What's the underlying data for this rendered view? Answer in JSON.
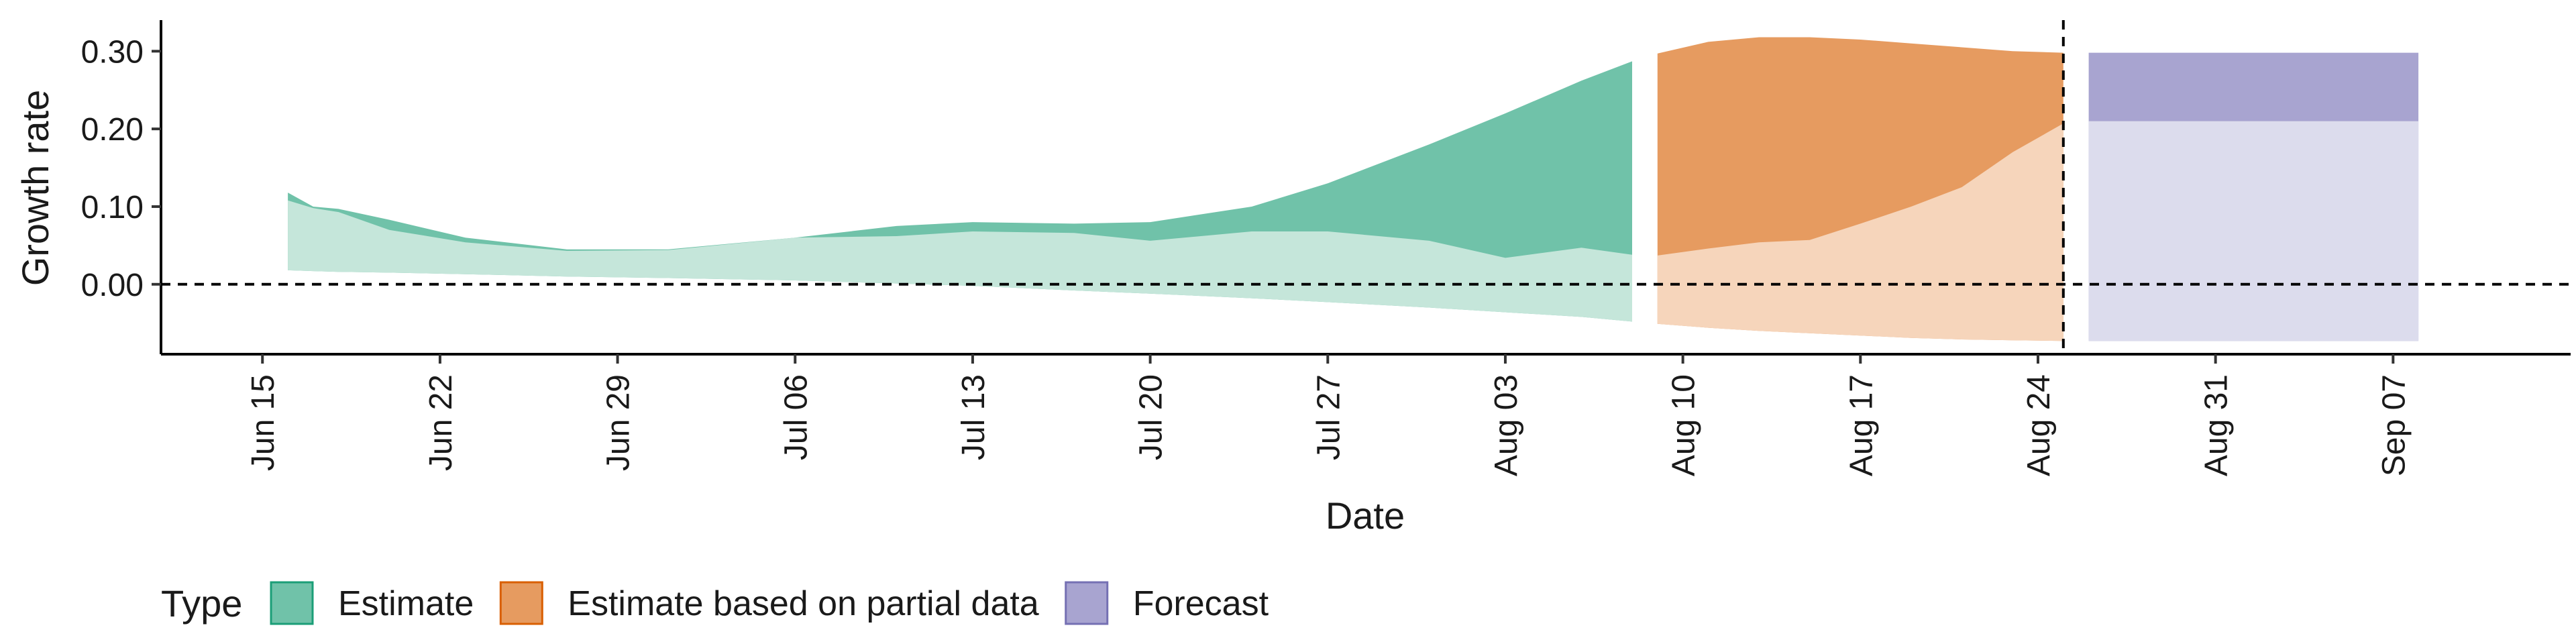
{
  "chart_data": {
    "type": "area",
    "title": "",
    "xlabel": "Date",
    "ylabel": "Growth rate",
    "x_range": [
      "2020-06-11",
      "2020-09-14"
    ],
    "ylim": [
      -0.09,
      0.34
    ],
    "grid": false,
    "x_ticks": [
      "Jun 15",
      "Jun 22",
      "Jun 29",
      "Jul 06",
      "Jul 13",
      "Jul 20",
      "Jul 27",
      "Aug 03",
      "Aug 10",
      "Aug 17",
      "Aug 24",
      "Aug 31",
      "Sep 07"
    ],
    "x_tick_dates": [
      "2020-06-15",
      "2020-06-22",
      "2020-06-29",
      "2020-07-06",
      "2020-07-13",
      "2020-07-20",
      "2020-07-27",
      "2020-08-03",
      "2020-08-10",
      "2020-08-17",
      "2020-08-24",
      "2020-08-31",
      "2020-09-07"
    ],
    "y_ticks": [
      0.0,
      0.1,
      0.2,
      0.3
    ],
    "y_tick_labels": [
      "0.00",
      "0.10",
      "0.20",
      "0.30"
    ],
    "reference_lines": {
      "horizontal_y": 0.0,
      "vertical_x": "2020-08-25",
      "style": "dashed"
    },
    "legend": {
      "title": "Type",
      "position": "bottom-left",
      "entries": [
        "Estimate",
        "Estimate based on partial data",
        "Forecast"
      ]
    },
    "series": [
      {
        "name": "Estimate",
        "color_outer": "#70c2a9",
        "color_inner": "#c5e6da",
        "stroke": "#1b9e77",
        "x": [
          "2020-06-16",
          "2020-06-17",
          "2020-06-18",
          "2020-06-20",
          "2020-06-23",
          "2020-06-27",
          "2020-07-01",
          "2020-07-06",
          "2020-07-10",
          "2020-07-13",
          "2020-07-17",
          "2020-07-20",
          "2020-07-24",
          "2020-07-27",
          "2020-07-31",
          "2020-08-03",
          "2020-08-06",
          "2020-08-08"
        ],
        "upper_90": [
          0.118,
          0.1,
          0.097,
          0.083,
          0.06,
          0.045,
          0.045,
          0.06,
          0.075,
          0.08,
          0.078,
          0.08,
          0.1,
          0.13,
          0.18,
          0.22,
          0.262,
          0.287
        ],
        "upper_50": [
          0.108,
          0.098,
          0.093,
          0.07,
          0.054,
          0.043,
          0.044,
          0.06,
          0.062,
          0.068,
          0.066,
          0.056,
          0.068,
          0.068,
          0.056,
          0.034,
          0.047,
          0.038
        ],
        "lower_50": [
          0.018,
          0.017,
          0.016,
          0.015,
          0.013,
          0.01,
          0.008,
          0.005,
          0.001,
          -0.002,
          -0.008,
          -0.012,
          -0.018,
          -0.023,
          -0.03,
          -0.036,
          -0.042,
          -0.048
        ],
        "lower_90": [
          0.018,
          0.017,
          0.016,
          0.015,
          0.013,
          0.01,
          0.008,
          0.005,
          0.001,
          -0.002,
          -0.008,
          -0.012,
          -0.018,
          -0.023,
          -0.03,
          -0.036,
          -0.042,
          -0.048
        ]
      },
      {
        "name": "Estimate based on partial data",
        "color_outer": "#e69b60",
        "color_inner": "#f6d5bb",
        "stroke": "#d95f02",
        "x": [
          "2020-08-09",
          "2020-08-11",
          "2020-08-13",
          "2020-08-15",
          "2020-08-17",
          "2020-08-19",
          "2020-08-21",
          "2020-08-23",
          "2020-08-25"
        ],
        "upper_90": [
          0.297,
          0.312,
          0.318,
          0.318,
          0.315,
          0.31,
          0.305,
          0.3,
          0.298
        ],
        "upper_50": [
          0.037,
          0.046,
          0.054,
          0.057,
          0.078,
          0.1,
          0.125,
          0.17,
          0.207
        ],
        "lower_50": [
          -0.051,
          -0.056,
          -0.06,
          -0.063,
          -0.066,
          -0.069,
          -0.071,
          -0.072,
          -0.073
        ],
        "lower_90": [
          -0.051,
          -0.056,
          -0.06,
          -0.063,
          -0.066,
          -0.069,
          -0.071,
          -0.072,
          -0.073
        ]
      },
      {
        "name": "Forecast",
        "color_outer": "#a8a4d0",
        "color_inner": "#dcdced",
        "stroke": "#7570b3",
        "x": [
          "2020-08-26",
          "2020-09-08"
        ],
        "upper_90": [
          0.298,
          0.298
        ],
        "upper_50": [
          0.21,
          0.21
        ],
        "lower_50": [
          -0.073,
          -0.073
        ],
        "lower_90": [
          -0.073,
          -0.073
        ]
      }
    ]
  }
}
